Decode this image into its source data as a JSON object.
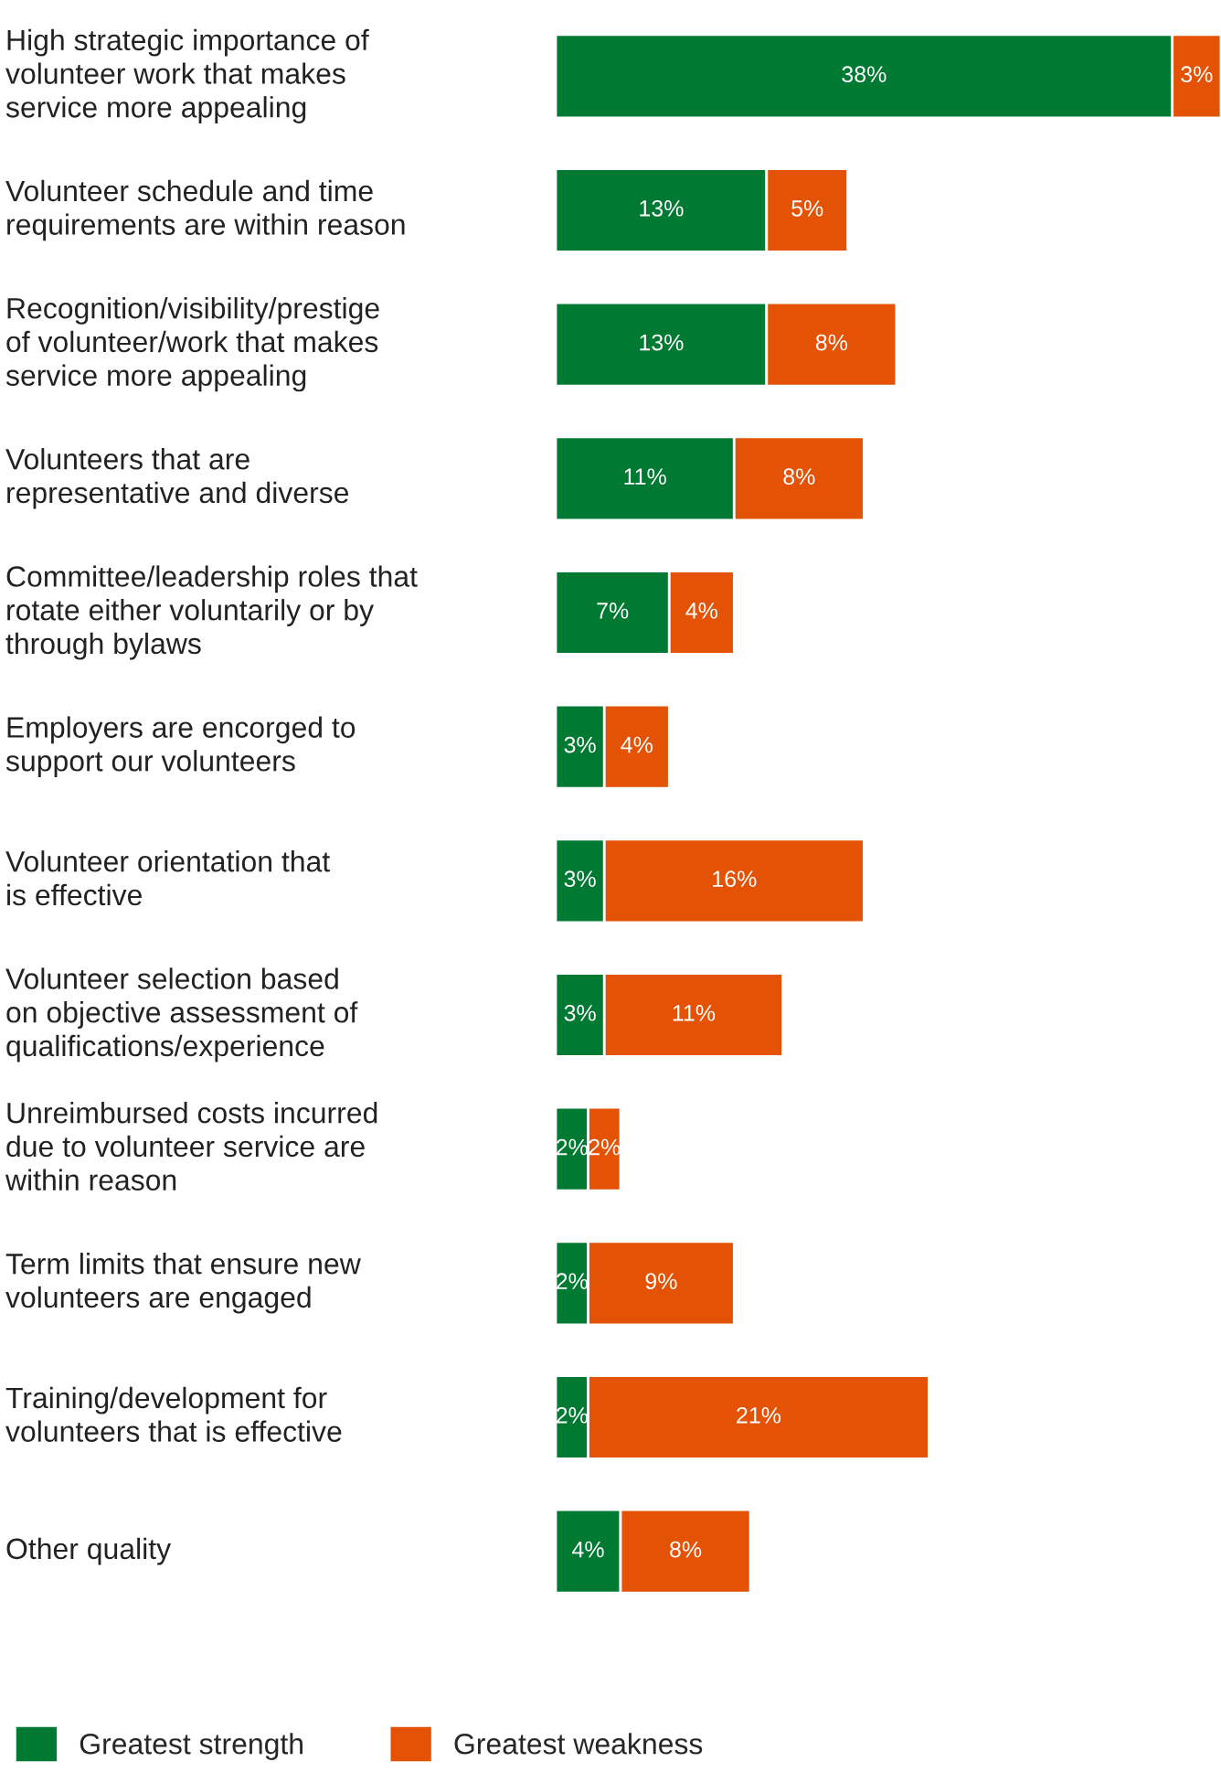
{
  "chart_data": {
    "type": "bar",
    "orientation": "horizontal",
    "stacked": true,
    "legend": "bottom",
    "categories": [
      "High strategic importance of\nvolunteer work that makes\nservice more appealing",
      "Volunteer schedule and time\nrequirements are within reason",
      "Recognition/visibility/prestige\nof volunteer/work that makes\nservice more appealing",
      "Volunteers that are\nrepresentative and diverse",
      "Committee/leadership roles that\nrotate either voluntarily or by\nthrough bylaws",
      "Employers are encorged to\nsupport our volunteers",
      "Volunteer orientation that\nis effective",
      "Volunteer selection based\non objective assessment of\nqualifications/experience",
      "Unreimbursed costs incurred\ndue to volunteer service are\nwithin reason",
      "Term limits that ensure new\nvolunteers are engaged",
      "Training/development for\nvolunteers that is effective",
      "Other quality"
    ],
    "series": [
      {
        "name": "Greatest strength",
        "color": "#007a33",
        "values": [
          38,
          13,
          13,
          11,
          7,
          3,
          3,
          3,
          2,
          2,
          2,
          4
        ],
        "value_labels": [
          "38%",
          "13%",
          "13%",
          "11%",
          "7%",
          "3%",
          "3%",
          "3%",
          "2%",
          "2%",
          "2%",
          "4%"
        ]
      },
      {
        "name": "Greatest weakness",
        "color": "#e35205",
        "values": [
          3,
          5,
          8,
          8,
          4,
          4,
          16,
          11,
          2,
          9,
          21,
          8
        ],
        "value_labels": [
          "3%",
          "5%",
          "8%",
          "8%",
          "4%",
          "4%",
          "16%",
          "11%",
          "2%",
          "9%",
          "21%",
          "8%"
        ]
      }
    ]
  }
}
